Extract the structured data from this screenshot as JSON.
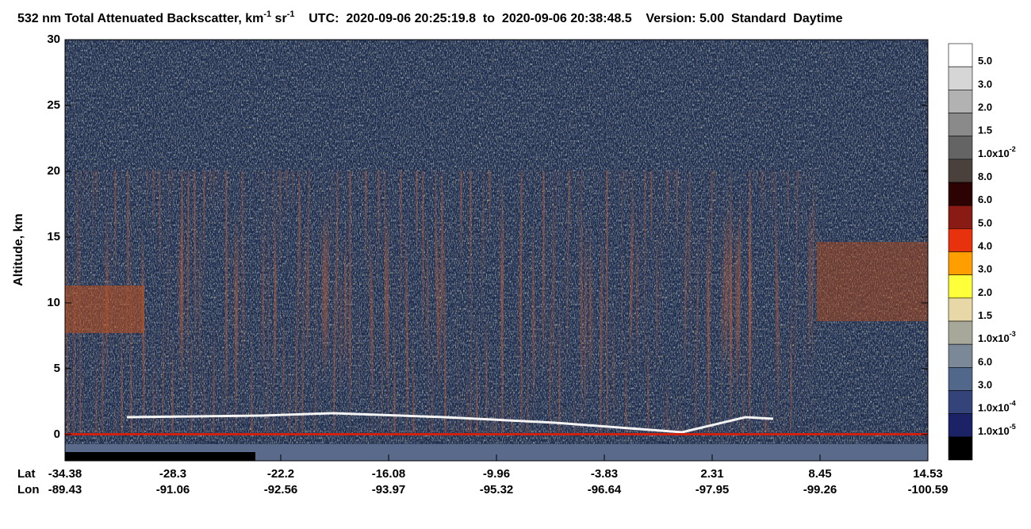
{
  "chart_data": {
    "type": "curtain",
    "title": [
      "532 nm Total Attenuated Backscatter, km",
      "-1",
      " sr",
      "-1",
      "    UTC:  2020-09-06 20:25:19.8  to  2020-09-06 20:38:48.5    Version: 5.00  Standard  Daytime"
    ],
    "y_label": "Altitude, km",
    "ylim": [
      -2,
      30
    ],
    "yticks": [
      0,
      5,
      10,
      15,
      20,
      25,
      30
    ],
    "x_row_labels": [
      "Lat",
      "Lon"
    ],
    "x_ticks": [
      {
        "lat": -34.38,
        "lon": -89.43
      },
      {
        "lat": -28.3,
        "lon": -91.06
      },
      {
        "lat": -22.2,
        "lon": -92.56
      },
      {
        "lat": -16.08,
        "lon": -93.97
      },
      {
        "lat": -9.96,
        "lon": -95.32
      },
      {
        "lat": -3.83,
        "lon": -96.64
      },
      {
        "lat": 2.31,
        "lon": -97.95
      },
      {
        "lat": 8.45,
        "lon": -99.26
      },
      {
        "lat": 14.53,
        "lon": -100.59
      }
    ],
    "colorbar": {
      "colors": [
        "#ffffff",
        "#d6d6d6",
        "#b2b2b2",
        "#8a8a8a",
        "#646464",
        "#4a403c",
        "#2c0202",
        "#8a1a14",
        "#e8320e",
        "#ff9e00",
        "#ffff3a",
        "#e8d8a8",
        "#a8a89a",
        "#7a8898",
        "#52688a",
        "#34447a",
        "#1c2266",
        "#000000"
      ],
      "labels": [
        [
          "5.0"
        ],
        [
          "3.0"
        ],
        [
          "2.0"
        ],
        [
          "1.5"
        ],
        [
          "1.0x10",
          "-2"
        ],
        [
          "8.0"
        ],
        [
          "6.0"
        ],
        [
          "5.0"
        ],
        [
          "4.0"
        ],
        [
          "3.0"
        ],
        [
          "2.0"
        ],
        [
          "1.5"
        ],
        [
          "1.0x10",
          "-3"
        ],
        [
          "6.0"
        ],
        [
          "3.0"
        ],
        [
          "1.0x10",
          "-4"
        ],
        [
          "1.0x10",
          "-5"
        ]
      ]
    }
  }
}
